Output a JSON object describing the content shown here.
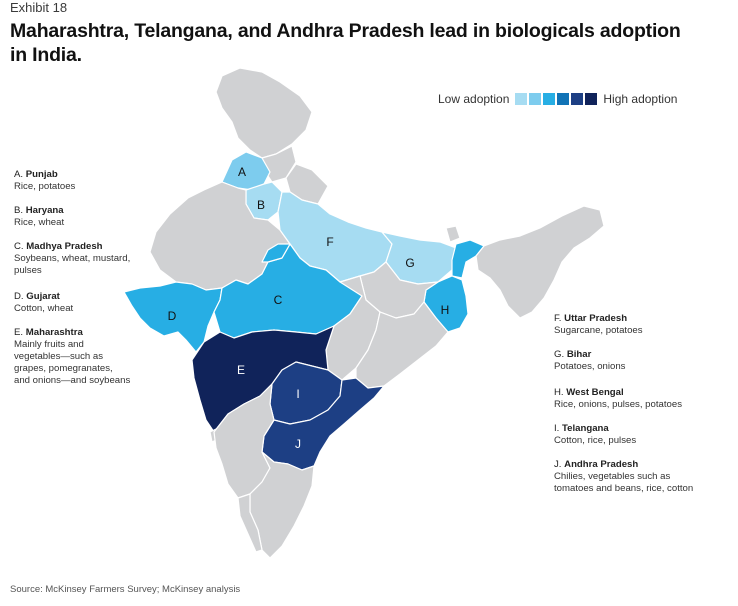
{
  "header": {
    "exhibit": "Exhibit 18",
    "title": "Maharashtra, Telangana, and Andhra Pradesh lead in biologicals adoption in India."
  },
  "legend": {
    "low_label": "Low adoption",
    "high_label": "High adoption",
    "colors": [
      "#a6dcf2",
      "#7dccee",
      "#27aee4",
      "#1173b6",
      "#1d3f84",
      "#10235a"
    ]
  },
  "colors": {
    "base_state": "#d0d1d3",
    "border": "#ffffff",
    "level_lowest": "#a6dcf2",
    "level_low": "#7dccee",
    "level_mid": "#27aee4",
    "level_high": "#1d3f84",
    "level_highest": "#10235a"
  },
  "regions": [
    {
      "letter": "A",
      "state": "Punjab",
      "crops": "Rice, potatoes"
    },
    {
      "letter": "B",
      "state": "Haryana",
      "crops": "Rice, wheat"
    },
    {
      "letter": "C",
      "state": "Madhya Pradesh",
      "crops": "Soybeans, wheat, mustard, pulses"
    },
    {
      "letter": "D",
      "state": "Gujarat",
      "crops": "Cotton, wheat"
    },
    {
      "letter": "E",
      "state": "Maharashtra",
      "crops": "Mainly fruits and vegetables—such as grapes, pomegranates, and onions—and soybeans"
    },
    {
      "letter": "F",
      "state": "Uttar Pradesh",
      "crops": "Sugarcane, potatoes"
    },
    {
      "letter": "G",
      "state": "Bihar",
      "crops": "Potatoes, onions"
    },
    {
      "letter": "H",
      "state": "West Bengal",
      "crops": "Rice, onions, pulses, potatoes"
    },
    {
      "letter": "I",
      "state": "Telangana",
      "crops": "Cotton, rice, pulses"
    },
    {
      "letter": "J",
      "state": "Andhra Pradesh",
      "crops": "Chilies, vegetables such as tomatoes and beans, rice, cotton"
    }
  ],
  "notes": {
    "a": {
      "prefix": "A.",
      "state": "Punjab",
      "crops": "Rice, potatoes"
    },
    "b": {
      "prefix": "B.",
      "state": "Haryana",
      "crops": "Rice, wheat"
    },
    "c": {
      "prefix": "C.",
      "state": "Madhya Pradesh",
      "crops_1": "Soybeans, wheat, mustard,",
      "crops_2": "pulses"
    },
    "d": {
      "prefix": "D.",
      "state": "Gujarat",
      "crops": "Cotton, wheat"
    },
    "e": {
      "prefix": "E.",
      "state": "Maharashtra",
      "crops_1": "Mainly fruits and",
      "crops_2": "vegetables—such as",
      "crops_3": "grapes, pomegranates,",
      "crops_4": "and onions—and soybeans"
    },
    "f": {
      "prefix": "F.",
      "state": "Uttar Pradesh",
      "crops": "Sugarcane, potatoes"
    },
    "g": {
      "prefix": "G.",
      "state": "Bihar",
      "crops": "Potatoes, onions"
    },
    "h": {
      "prefix": "H.",
      "state": "West Bengal",
      "crops": "Rice, onions, pulses, potatoes"
    },
    "i": {
      "prefix": "I.",
      "state": "Telangana",
      "crops": "Cotton, rice, pulses"
    },
    "j": {
      "prefix": "J.",
      "state": "Andhra Pradesh",
      "crops_1": "Chilies, vegetables such as",
      "crops_2": "tomatoes and beans, rice, cotton"
    }
  },
  "source": "Source: McKinsey Farmers Survey; McKinsey analysis"
}
